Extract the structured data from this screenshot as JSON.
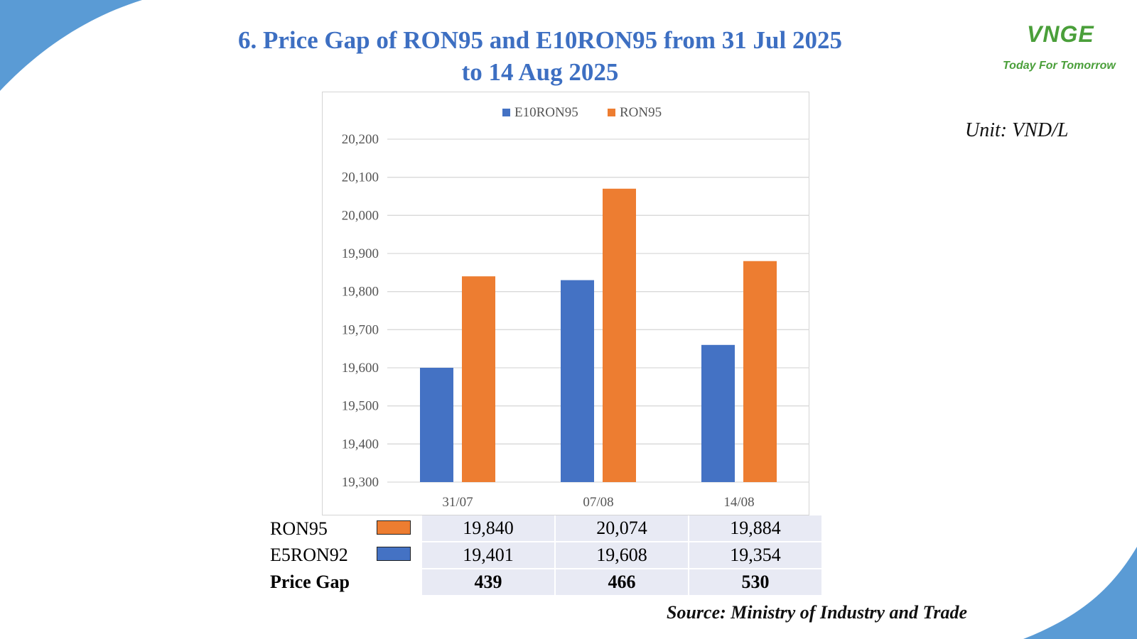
{
  "title_lines": [
    "6. Price Gap of RON95 and E10RON95 from 31 Jul 2025",
    "to 14 Aug 2025"
  ],
  "logo": {
    "mark": "VNGE",
    "tagline": "Today For Tomorrow",
    "color": "#4a9f3a"
  },
  "unit": "Unit: VND/L",
  "source": "Source: Ministry of Industry and Trade",
  "colors": {
    "accent": "#5a9bd5",
    "title": "#3d6fc2",
    "e10ron95": "#4472c4",
    "ron95": "#ed7d31"
  },
  "chart_data": {
    "type": "bar",
    "categories": [
      "31/07",
      "07/08",
      "14/08"
    ],
    "series": [
      {
        "name": "E10RON95",
        "values": [
          19600,
          19830,
          19660
        ],
        "color": "#4472c4"
      },
      {
        "name": "RON95",
        "values": [
          19840,
          20070,
          19880
        ],
        "color": "#ed7d31"
      }
    ],
    "ylim": [
      19300,
      20200
    ],
    "yticks": [
      19300,
      19400,
      19500,
      19600,
      19700,
      19800,
      19900,
      20000,
      20100,
      20200
    ],
    "grid": true,
    "legend": "top"
  },
  "table": {
    "rows": [
      {
        "label": "RON95",
        "swatch": "#ed7d31",
        "values": [
          "19,840",
          "20,074",
          "19,884"
        ]
      },
      {
        "label": "E5RON92",
        "swatch": "#4472c4",
        "values": [
          "19,401",
          "19,608",
          "19,354"
        ]
      },
      {
        "label": "Price Gap",
        "values": [
          "439",
          "466",
          "530"
        ]
      }
    ]
  }
}
